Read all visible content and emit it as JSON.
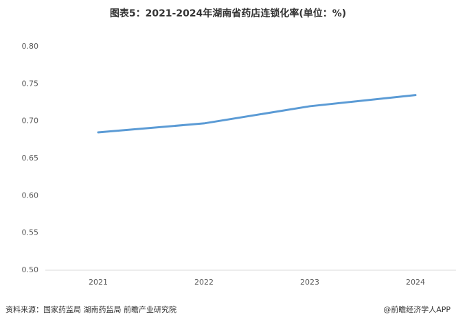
{
  "chart_data": {
    "type": "line",
    "title": "图表5：2021-2024年湖南省药店连锁化率(单位：%)",
    "categories": [
      "2021",
      "2022",
      "2023",
      "2024"
    ],
    "series": [
      {
        "name": "湖南省药店连锁化率",
        "color": "#5b9bd5",
        "values": [
          0.685,
          0.697,
          0.72,
          0.735
        ]
      }
    ],
    "ylim": [
      0.5,
      0.8
    ],
    "yticks": [
      {
        "value": 0.5,
        "label": "0.50"
      },
      {
        "value": 0.55,
        "label": "0.55"
      },
      {
        "value": 0.6,
        "label": "0.60"
      },
      {
        "value": 0.65,
        "label": "0.65"
      },
      {
        "value": 0.7,
        "label": "0.70"
      },
      {
        "value": 0.75,
        "label": "0.75"
      },
      {
        "value": 0.8,
        "label": "0.80"
      }
    ],
    "grid": false,
    "source": "资料来源：国家药监局 湖南药监局 前瞻产业研究院",
    "credit": "@前瞻经济学人APP"
  }
}
